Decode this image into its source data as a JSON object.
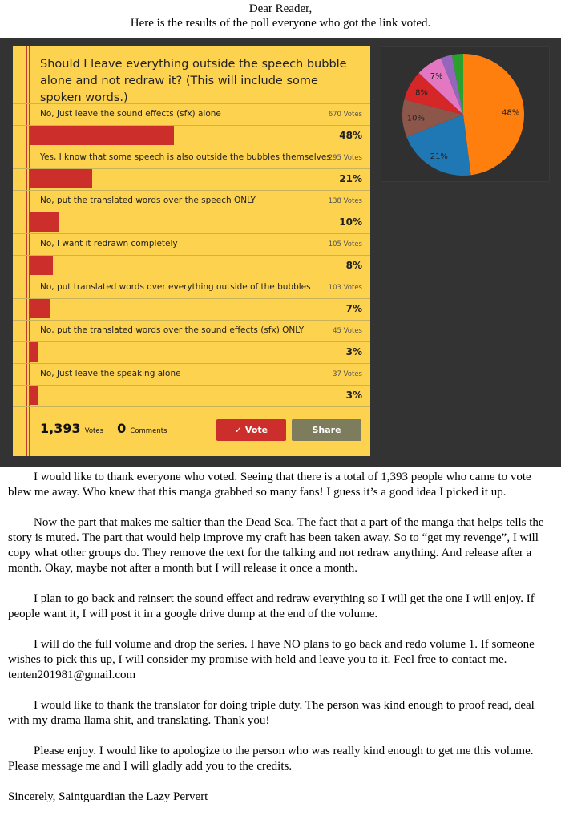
{
  "header": {
    "greeting": "Dear Reader,",
    "subtitle": "Here is the results of the poll everyone who got the link voted."
  },
  "poll": {
    "question": "Should I leave everything outside the speech bubble alone and not redraw it? (This will include some spoken words.)",
    "options": [
      {
        "label": "No, Just leave the sound effects (sfx) alone",
        "votes": "670 Votes",
        "percent": "48%",
        "value": 48
      },
      {
        "label": "Yes, I know that some speech is also outside the bubbles themselves",
        "votes": "295 Votes",
        "percent": "21%",
        "value": 21
      },
      {
        "label": "No, put the translated words over the speech ONLY",
        "votes": "138 Votes",
        "percent": "10%",
        "value": 10
      },
      {
        "label": "No, I want it redrawn completely",
        "votes": "105 Votes",
        "percent": "8%",
        "value": 8
      },
      {
        "label": "No, put translated words over everything outside of the bubbles",
        "votes": "103 Votes",
        "percent": "7%",
        "value": 7
      },
      {
        "label": "No, put the translated words over the sound effects (sfx) ONLY",
        "votes": "45 Votes",
        "percent": "3%",
        "value": 3
      },
      {
        "label": "No, Just leave the speaking alone",
        "votes": "37 Votes",
        "percent": "3%",
        "value": 3
      }
    ],
    "total_votes": "1,393",
    "votes_label": "Votes",
    "comments": "0",
    "comments_label": "Comments",
    "vote_button": "✓ Vote",
    "share_button": "Share",
    "colors": {
      "card": "#fdd24f",
      "bar": "#cc2e2b",
      "vote": "#cc2e2b",
      "share": "#7d7c5c"
    }
  },
  "chart_data": {
    "type": "pie",
    "values": [
      48,
      21,
      10,
      8,
      7,
      3,
      3
    ],
    "labels": [
      "48%",
      "21%",
      "10%",
      "8%",
      "7%",
      "",
      ""
    ],
    "colors": [
      "#ff7f0e",
      "#1f77b4",
      "#8c564b",
      "#d62728",
      "#e377c2",
      "#9467bd",
      "#2ca02c"
    ]
  },
  "body": {
    "paragraphs": [
      "I would like to thank everyone who voted.  Seeing that there is a total of 1,393 people who came to vote blew me away.  Who knew that this manga grabbed so many fans!  I guess it’s a good idea I picked it up.",
      "Now the part that makes me saltier than the Dead Sea.  The fact that a part of the manga that helps tells the story is muted.  The part that would help improve my craft has been taken away.  So to “get my revenge”, I will copy what other groups do.  They remove the text for the talking and not redraw anything.  And release after a month.  Okay, maybe not after a month but I will release it once a month.",
      "I plan to go back and reinsert the sound effect and redraw everything so I will get the one I will enjoy.  If people want it, I will post it in a google drive dump at the end of the volume.",
      "I will do the full volume and drop the series.  I have NO plans to go back and redo volume 1.  If someone wishes to pick this up, I will consider my promise with held and leave you to it.  Feel free to contact me. tenten201981@gmail.com",
      "I would like to thank the translator for doing triple duty.  The person was kind enough to proof read, deal with my drama llama shit, and translating.  Thank you!",
      "Please enjoy.  I would like to apologize to the person who was really kind enough to get me this volume.  Please message me and I will gladly add you to the credits."
    ],
    "signature": "Sincerely, Saintguardian the Lazy Pervert"
  }
}
